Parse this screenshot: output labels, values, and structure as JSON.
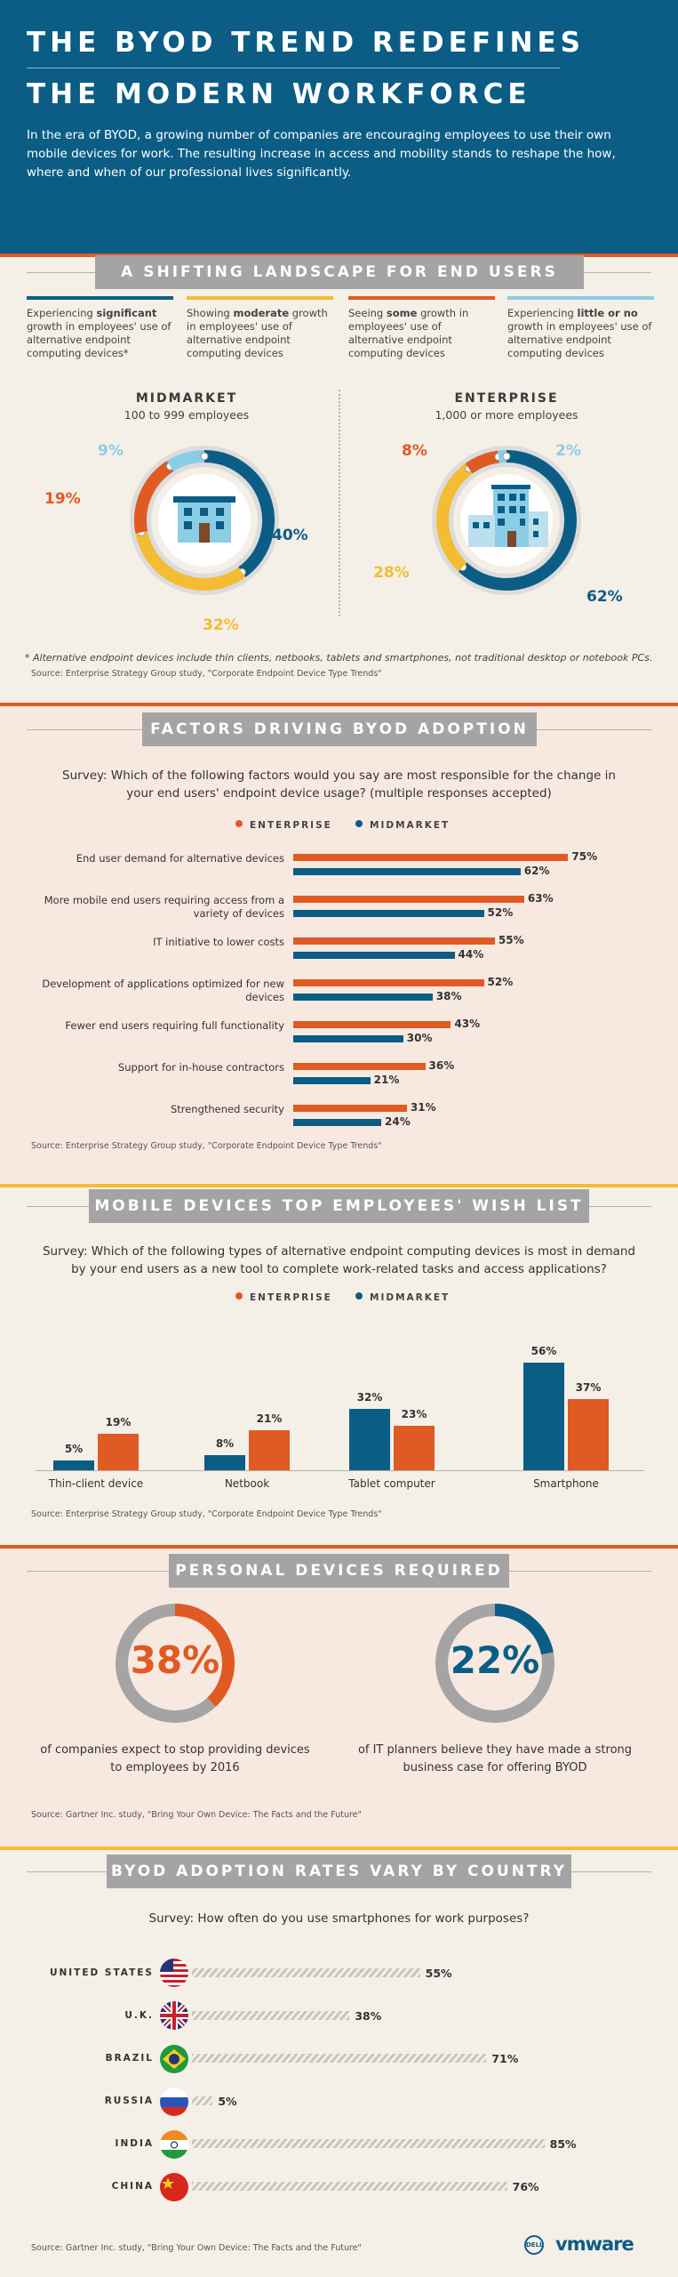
{
  "header": {
    "title_line1": "THE BYOD TREND REDEFINES",
    "title_line2": "THE MODERN WORKFORCE",
    "intro": "In the era of BYOD, a growing number of companies are encouraging employees to use their own mobile devices for work. The resulting increase in access and mobility stands to reshape the how, where and when of our professional lives significantly."
  },
  "colors": {
    "blue": "#0b5d85",
    "yellow": "#f4bc32",
    "orange": "#e05a24",
    "light_blue": "#8ccde6",
    "gray": "#a4a4a4",
    "cream": "#f4efe7"
  },
  "section1": {
    "banner": "A SHIFTING LANDSCAPE FOR END USERS",
    "legend": [
      {
        "pre": "Experiencing ",
        "bold": "significant",
        "post": " growth in employees' use of alternative endpoint computing devices*",
        "color": "#0b5d85"
      },
      {
        "pre": "Showing ",
        "bold": "moderate",
        "post": " growth in employees' use of alternative endpoint computing devices",
        "color": "#f4bc32"
      },
      {
        "pre": "Seeing ",
        "bold": "some",
        "post": " growth in employees' use of alternative endpoint computing devices",
        "color": "#e05a24"
      },
      {
        "pre": "Experiencing ",
        "bold": "little or no",
        "post": " growth in employees' use of alternative endpoint computing devices",
        "color": "#8ccde6"
      }
    ],
    "midmarket": {
      "title": "MIDMARKET",
      "subtitle": "100 to 999 employees",
      "labels": [
        "40%",
        "32%",
        "19%",
        "9%"
      ]
    },
    "enterprise": {
      "title": "ENTERPRISE",
      "subtitle": "1,000 or more employees",
      "labels": [
        "62%",
        "28%",
        "8%",
        "2%"
      ]
    },
    "footnote": "* Alternative endpoint devices include thin clients, netbooks, tablets and smartphones, not traditional desktop or notebook PCs.",
    "source": "Source: Enterprise Strategy Group study, \"Corporate Endpoint Device Type Trends\""
  },
  "section2": {
    "banner": "FACTORS DRIVING BYOD ADOPTION",
    "survey": "Survey: Which of the following factors would you say are most responsible for the change in your end users' endpoint device usage? (multiple responses accepted)",
    "legend_enterprise": "ENTERPRISE",
    "legend_midmarket": "MIDMARKET",
    "source": "Source: Enterprise Strategy Group study, \"Corporate Endpoint Device Type Trends\""
  },
  "section3": {
    "banner": "MOBILE DEVICES TOP EMPLOYEES' WISH LIST",
    "survey": "Survey: Which of the following types of alternative endpoint computing devices is most in demand by your end users as a new tool to complete work-related tasks and access applications?",
    "legend_enterprise": "ENTERPRISE",
    "legend_midmarket": "MIDMARKET",
    "source": "Source: Enterprise Strategy Group study, \"Corporate Endpoint Device Type Trends\""
  },
  "section4": {
    "banner": "PERSONAL DEVICES REQUIRED",
    "stat1": {
      "value": "38%",
      "caption": "of companies expect to stop providing devices to employees by 2016"
    },
    "stat2": {
      "value": "22%",
      "caption": "of IT planners believe they have made a strong business case for offering BYOD"
    },
    "source": "Source: Gartner Inc. study, \"Bring Your Own Device: The Facts and the Future\""
  },
  "section5": {
    "banner": "BYOD ADOPTION RATES VARY BY COUNTRY",
    "survey": "Survey: How often do you use smartphones for work purposes?",
    "source": "Source: Gartner Inc. study, \"Bring Your Own Device: The Facts and the Future\"",
    "logo_dell": "DELL",
    "logo_vmware": "vmware"
  },
  "chart_data": [
    {
      "type": "pie",
      "title": "MIDMARKET",
      "subtitle": "100 to 999 employees",
      "categories": [
        "significant",
        "moderate",
        "some",
        "little or no"
      ],
      "values": [
        40,
        32,
        19,
        9
      ]
    },
    {
      "type": "pie",
      "title": "ENTERPRISE",
      "subtitle": "1,000 or more employees",
      "categories": [
        "significant",
        "moderate",
        "some",
        "little or no"
      ],
      "values": [
        62,
        28,
        8,
        2
      ]
    },
    {
      "type": "bar",
      "orientation": "horizontal",
      "categories": [
        "End user demand for alternative devices",
        "More mobile end users requiring access from a variety of devices",
        "IT initiative to lower costs",
        "Development of applications optimized for new devices",
        "Fewer end users requiring full functionality",
        "Support for in-house contractors",
        "Strengthened security"
      ],
      "series": [
        {
          "name": "ENTERPRISE",
          "values": [
            75,
            63,
            55,
            52,
            43,
            36,
            31
          ]
        },
        {
          "name": "MIDMARKET",
          "values": [
            62,
            52,
            44,
            38,
            30,
            21,
            24
          ]
        }
      ],
      "ylim": [
        0,
        80
      ]
    },
    {
      "type": "bar",
      "categories": [
        "Thin-client device",
        "Netbook",
        "Tablet computer",
        "Smartphone"
      ],
      "series": [
        {
          "name": "MIDMARKET",
          "values": [
            5,
            8,
            32,
            56
          ]
        },
        {
          "name": "ENTERPRISE",
          "values": [
            19,
            21,
            23,
            37
          ]
        }
      ],
      "ylim": [
        0,
        60
      ]
    },
    {
      "type": "bar",
      "orientation": "horizontal",
      "categories": [
        "UNITED STATES",
        "U.K.",
        "BRAZIL",
        "RUSSIA",
        "INDIA",
        "CHINA"
      ],
      "values": [
        55,
        38,
        71,
        5,
        85,
        76
      ],
      "ylim": [
        0,
        100
      ]
    }
  ]
}
